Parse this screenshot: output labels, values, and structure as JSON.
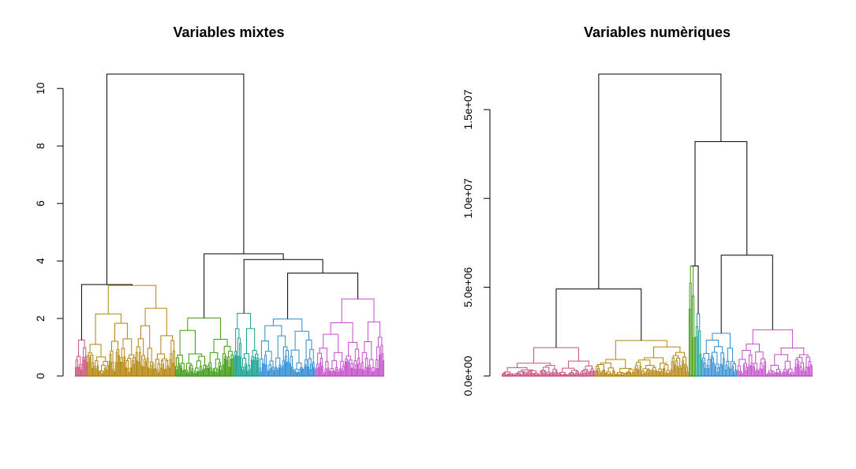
{
  "chart_data": [
    {
      "type": "dendrogram",
      "title": "Variables mixtes",
      "xlabel": "",
      "ylabel": "",
      "ylim": [
        0,
        10.5
      ],
      "yticks": [
        0,
        2,
        4,
        6,
        8,
        10
      ],
      "ytick_labels": [
        "0",
        "2",
        "4",
        "6",
        "8",
        "10"
      ],
      "grid": false,
      "n_clusters": 6,
      "cluster_colors": [
        "#CC4F7D",
        "#B38309",
        "#3E9A0C",
        "#12A08F",
        "#2A8BD3",
        "#C34DC8"
      ],
      "cluster_sizes": [
        8,
        60,
        40,
        17,
        38,
        47
      ],
      "cluster_heights": [
        1.25,
        3.15,
        2.02,
        2.18,
        1.98,
        2.68
      ],
      "merges": [
        {
          "left": 0,
          "right": 1,
          "height": 3.18
        },
        {
          "left": 4,
          "right": 5,
          "height": 3.58
        },
        {
          "left": 3,
          "right": "4+5",
          "height": 4.05
        },
        {
          "left": 2,
          "right": "3+4+5",
          "height": 4.25
        },
        {
          "left": "0+1",
          "right": "2+3+4+5",
          "height": 10.5
        }
      ]
    },
    {
      "type": "dendrogram",
      "title": "Variables numèriques",
      "xlabel": "",
      "ylabel": "",
      "ylim": [
        0,
        17000000
      ],
      "yticks": [
        0,
        5000000,
        10000000,
        15000000
      ],
      "ytick_labels": [
        "0.0e+00",
        "5.0e+06",
        "1.0e+07",
        "1.5e+07"
      ],
      "grid": false,
      "n_clusters": 6,
      "cluster_colors": [
        "#CC4F7D",
        "#B38309",
        "#3E9A0C",
        "#12A08F",
        "#2A8BD3",
        "#C34DC8"
      ],
      "cluster_sizes": [
        58,
        58,
        4,
        4,
        22,
        47
      ],
      "cluster_heights": [
        1600000,
        2000000,
        6200000,
        3500000,
        2400000,
        2600000
      ],
      "merges": [
        {
          "left": 0,
          "right": 1,
          "height": 4900000
        },
        {
          "left": 4,
          "right": 5,
          "height": 6800000
        },
        {
          "left": 2,
          "right": 3,
          "height": 6200000
        },
        {
          "left": "2+3",
          "right": "4+5",
          "height": 13200000
        },
        {
          "left": "0+1",
          "right": "2+3+4+5",
          "height": 17000000
        }
      ]
    }
  ]
}
